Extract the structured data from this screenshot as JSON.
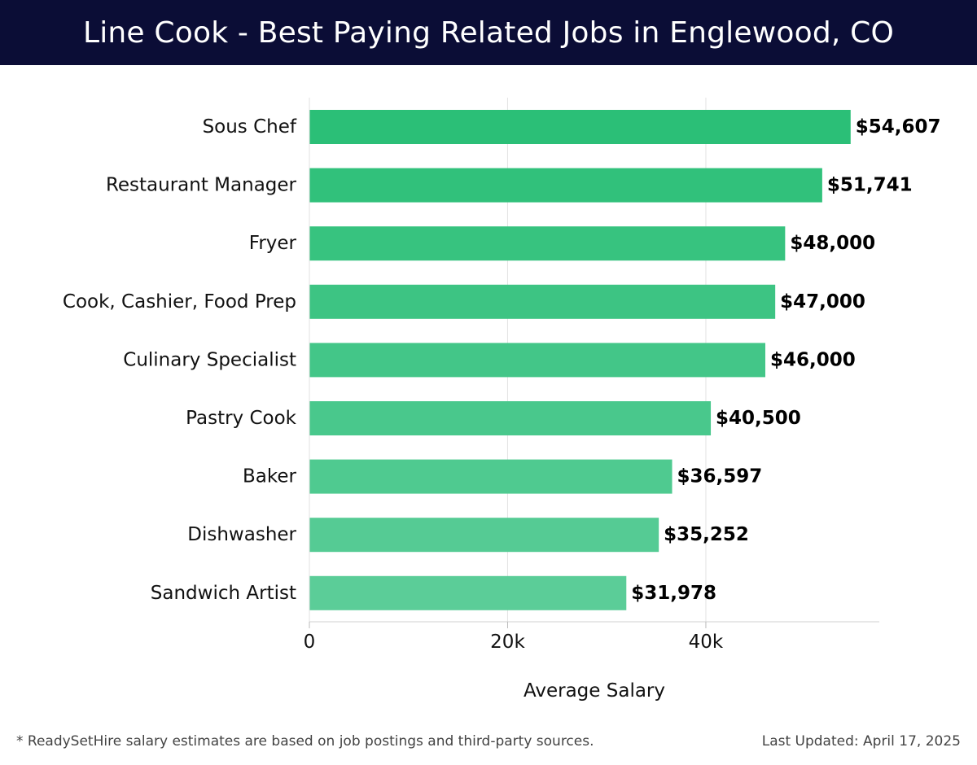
{
  "header": {
    "title": "Line Cook - Best Paying Related Jobs in Englewood, CO",
    "background": "#0b0d36"
  },
  "chart_data": {
    "type": "bar",
    "orientation": "horizontal",
    "categories": [
      "Sous Chef",
      "Restaurant Manager",
      "Fryer",
      "Cook, Cashier, Food Prep",
      "Culinary Specialist",
      "Pastry Cook",
      "Baker",
      "Dishwasher",
      "Sandwich Artist"
    ],
    "values": [
      54607,
      51741,
      48000,
      47000,
      46000,
      40500,
      36597,
      35252,
      31978
    ],
    "value_labels": [
      "$54,607",
      "$51,741",
      "$48,000",
      "$47,000",
      "$46,000",
      "$40,500",
      "$36,597",
      "$35,252",
      "$31,978"
    ],
    "title": "",
    "xlabel": "Average Salary",
    "ylabel": "",
    "xlim": [
      0,
      57500
    ],
    "x_ticks": [
      0,
      20000,
      40000
    ],
    "x_tick_labels": [
      "0",
      "20k",
      "40k"
    ],
    "grid": "vertical",
    "bar_color_top": "#2bbf77",
    "bar_color_bottom": "#5bcd98"
  },
  "footer": {
    "note": "* ReadySetHire salary estimates are based on job postings and third-party sources.",
    "updated": "Last Updated: April 17, 2025"
  }
}
